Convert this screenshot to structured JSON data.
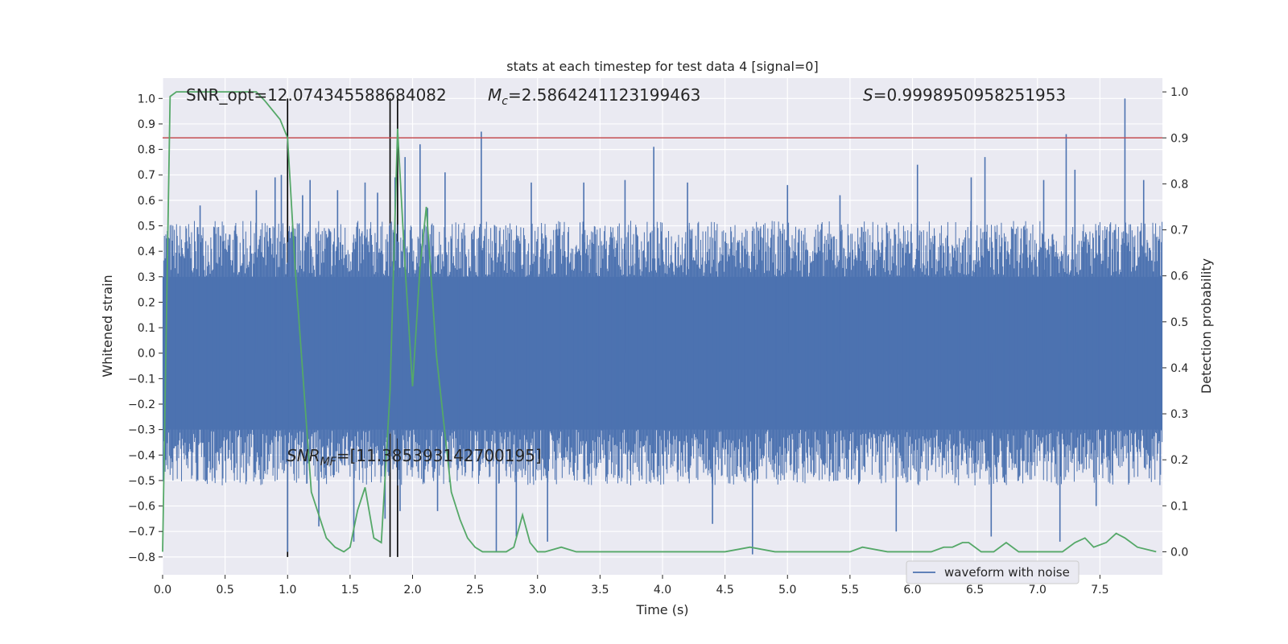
{
  "chart_data": {
    "type": "line",
    "title": "stats at each timestep for test data 4 [signal=0]",
    "xlabel": "Time (s)",
    "ylabel_left": "Whitened strain",
    "ylabel_right": "Detection probability",
    "xlim": [
      0.0,
      8.0
    ],
    "ylim_left": [
      -0.87,
      1.08
    ],
    "ylim_right": [
      -0.05,
      1.03
    ],
    "x_ticks": [
      0.0,
      0.5,
      1.0,
      1.5,
      2.0,
      2.5,
      3.0,
      3.5,
      4.0,
      4.5,
      5.0,
      5.5,
      6.0,
      6.5,
      7.0,
      7.5
    ],
    "x_tick_labels": [
      "0.0",
      "0.5",
      "1.0",
      "1.5",
      "2.0",
      "2.5",
      "3.0",
      "3.5",
      "4.0",
      "4.5",
      "5.0",
      "5.5",
      "6.0",
      "6.5",
      "7.0",
      "7.5"
    ],
    "y_ticks_left": [
      -0.8,
      -0.7,
      -0.6,
      -0.5,
      -0.4,
      -0.3,
      -0.2,
      -0.1,
      0.0,
      0.1,
      0.2,
      0.3,
      0.4,
      0.5,
      0.6,
      0.7,
      0.8,
      0.9,
      1.0
    ],
    "y_tick_labels_left": [
      "−0.8",
      "−0.7",
      "−0.6",
      "−0.5",
      "−0.4",
      "−0.3",
      "−0.2",
      "−0.1",
      "0.0",
      "0.1",
      "0.2",
      "0.3",
      "0.4",
      "0.5",
      "0.6",
      "0.7",
      "0.8",
      "0.9",
      "1.0"
    ],
    "y_ticks_right": [
      0.0,
      0.1,
      0.2,
      0.3,
      0.4,
      0.5,
      0.6,
      0.7,
      0.8,
      0.9,
      1.0
    ],
    "y_tick_labels_right": [
      "0.0",
      "0.1",
      "0.2",
      "0.3",
      "0.4",
      "0.5",
      "0.6",
      "0.7",
      "0.8",
      "0.9",
      "1.0"
    ],
    "grid": true,
    "annotations": {
      "snr_opt": "SNR_opt=12.074345588684082",
      "mc_symbol": "M",
      "mc_sub": "c",
      "mc_value": "=2.5864241123199463",
      "s_symbol": "S",
      "s_value": "=0.9998950958251953",
      "snr_mf_symbol": "SNR",
      "snr_mf_sub": "MF",
      "snr_mf_value": "=[11.385393142700195]"
    },
    "threshold": {
      "value": 0.9,
      "axis": "right",
      "color": "#c44e52"
    },
    "vertical_lines": [
      1.0,
      1.82,
      1.88
    ],
    "series": [
      {
        "name": "waveform with noise",
        "axis": "left",
        "color": "#4c72b0",
        "core_amplitude": 0.3,
        "spikes": [
          [
            0.3,
            0.58
          ],
          [
            0.75,
            0.64
          ],
          [
            0.9,
            0.69
          ],
          [
            0.95,
            0.7
          ],
          [
            1.0,
            -0.78
          ],
          [
            1.12,
            0.62
          ],
          [
            1.18,
            0.68
          ],
          [
            1.25,
            -0.68
          ],
          [
            1.4,
            0.64
          ],
          [
            1.53,
            -0.74
          ],
          [
            1.62,
            0.67
          ],
          [
            1.72,
            0.63
          ],
          [
            1.78,
            -0.65
          ],
          [
            1.86,
            0.69
          ],
          [
            1.9,
            -0.62
          ],
          [
            1.94,
            0.77
          ],
          [
            2.06,
            0.82
          ],
          [
            2.12,
            0.57
          ],
          [
            2.2,
            -0.62
          ],
          [
            2.26,
            0.71
          ],
          [
            2.55,
            0.87
          ],
          [
            2.67,
            -0.78
          ],
          [
            2.83,
            -0.72
          ],
          [
            2.95,
            0.67
          ],
          [
            3.08,
            -0.74
          ],
          [
            3.37,
            0.67
          ],
          [
            3.7,
            0.68
          ],
          [
            3.93,
            0.81
          ],
          [
            4.2,
            0.67
          ],
          [
            4.4,
            -0.67
          ],
          [
            4.72,
            -0.79
          ],
          [
            5.0,
            0.66
          ],
          [
            5.42,
            0.62
          ],
          [
            5.87,
            -0.7
          ],
          [
            6.04,
            0.74
          ],
          [
            6.47,
            0.69
          ],
          [
            6.58,
            0.77
          ],
          [
            6.63,
            -0.72
          ],
          [
            7.05,
            0.68
          ],
          [
            7.18,
            -0.74
          ],
          [
            7.23,
            0.86
          ],
          [
            7.3,
            0.72
          ],
          [
            7.47,
            -0.6
          ],
          [
            7.7,
            1.0
          ],
          [
            7.85,
            0.68
          ]
        ],
        "legend": "lower-right"
      },
      {
        "name": "detection probability",
        "axis": "right",
        "color": "#55a868",
        "x": [
          0.0,
          0.06,
          0.11,
          0.19,
          0.28,
          0.38,
          0.5,
          0.62,
          0.75,
          0.82,
          0.94,
          1.0,
          1.06,
          1.19,
          1.31,
          1.38,
          1.45,
          1.5,
          1.56,
          1.62,
          1.69,
          1.75,
          1.82,
          1.88,
          1.94,
          2.0,
          2.06,
          2.11,
          2.19,
          2.27,
          2.31,
          2.38,
          2.44,
          2.5,
          2.56,
          2.69,
          2.75,
          2.81,
          2.88,
          2.94,
          3.0,
          3.06,
          3.19,
          3.31,
          3.5,
          3.7,
          3.9,
          4.1,
          4.3,
          4.5,
          4.7,
          4.9,
          5.1,
          5.3,
          5.5,
          5.6,
          5.8,
          6.0,
          6.15,
          6.25,
          6.32,
          6.4,
          6.45,
          6.55,
          6.65,
          6.75,
          6.85,
          7.0,
          7.2,
          7.3,
          7.38,
          7.45,
          7.55,
          7.63,
          7.7,
          7.8,
          7.95
        ],
        "y": [
          0.0,
          0.99,
          1.0,
          1.0,
          1.0,
          1.0,
          1.0,
          1.0,
          1.0,
          0.98,
          0.94,
          0.9,
          0.62,
          0.13,
          0.03,
          0.01,
          0.0,
          0.01,
          0.09,
          0.14,
          0.03,
          0.02,
          0.35,
          0.92,
          0.62,
          0.36,
          0.62,
          0.75,
          0.43,
          0.23,
          0.13,
          0.07,
          0.03,
          0.01,
          0.0,
          0.0,
          0.0,
          0.01,
          0.08,
          0.02,
          0.0,
          0.0,
          0.01,
          0.0,
          0.0,
          0.0,
          0.0,
          0.0,
          0.0,
          0.0,
          0.01,
          0.0,
          0.0,
          0.0,
          0.0,
          0.01,
          0.0,
          0.0,
          0.0,
          0.01,
          0.01,
          0.02,
          0.02,
          0.0,
          0.0,
          0.02,
          0.0,
          0.0,
          0.0,
          0.02,
          0.03,
          0.01,
          0.02,
          0.04,
          0.03,
          0.01,
          0.0
        ]
      }
    ]
  }
}
